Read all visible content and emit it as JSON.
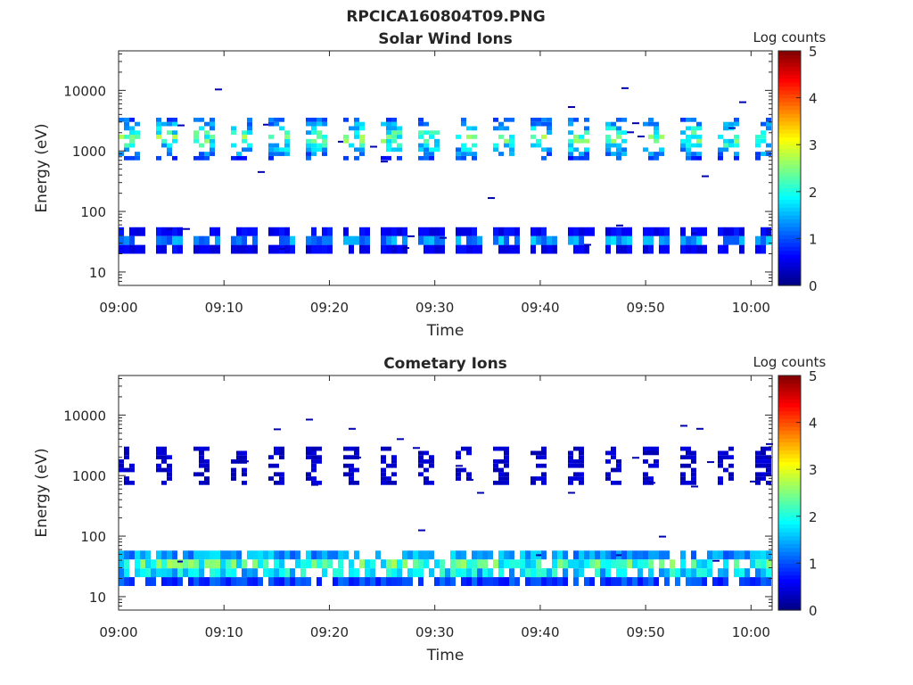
{
  "figure_title": "RPCICA160804T09.PNG",
  "chart_data": [
    {
      "type": "heatmap",
      "title": "Solar Wind Ions",
      "xlabel": "Time",
      "ylabel": "Energy (eV)",
      "x_tick_labels": [
        "09:00",
        "09:10",
        "09:20",
        "09:30",
        "09:40",
        "09:50",
        "10:00"
      ],
      "x_range": [
        "09:00",
        "10:02"
      ],
      "y_scale": "log",
      "y_range": [
        6,
        45000
      ],
      "y_tick_labels": [
        "10",
        "100",
        "1000",
        "10000"
      ],
      "colorbar": {
        "label": "Log counts",
        "range": [
          0,
          5
        ],
        "tick_labels": [
          "0",
          "1",
          "2",
          "3",
          "4",
          "5"
        ],
        "colormap": "jet"
      },
      "bands": [
        {
          "energy_range": [
            700,
            3200
          ],
          "peak_log_counts": 3.0,
          "description": "solar wind ion band, pulsed"
        },
        {
          "energy_range": [
            20,
            40
          ],
          "peak_log_counts": 1.8,
          "description": "low-energy band"
        }
      ]
    },
    {
      "type": "heatmap",
      "title": "Cometary Ions",
      "xlabel": "Time",
      "ylabel": "Energy (eV)",
      "x_tick_labels": [
        "09:00",
        "09:10",
        "09:20",
        "09:30",
        "09:40",
        "09:50",
        "10:00"
      ],
      "x_range": [
        "09:00",
        "10:02"
      ],
      "y_scale": "log",
      "y_range": [
        6,
        45000
      ],
      "y_tick_labels": [
        "10",
        "100",
        "1000",
        "10000"
      ],
      "colorbar": {
        "label": "Log counts",
        "range": [
          0,
          5
        ],
        "tick_labels": [
          "0",
          "1",
          "2",
          "3",
          "4",
          "5"
        ],
        "colormap": "jet"
      },
      "bands": [
        {
          "energy_range": [
            700,
            3000
          ],
          "peak_log_counts": 0.5,
          "description": "sparse high-energy band"
        },
        {
          "energy_range": [
            15,
            50
          ],
          "peak_log_counts": 3.0,
          "description": "cometary ion band"
        }
      ]
    }
  ]
}
